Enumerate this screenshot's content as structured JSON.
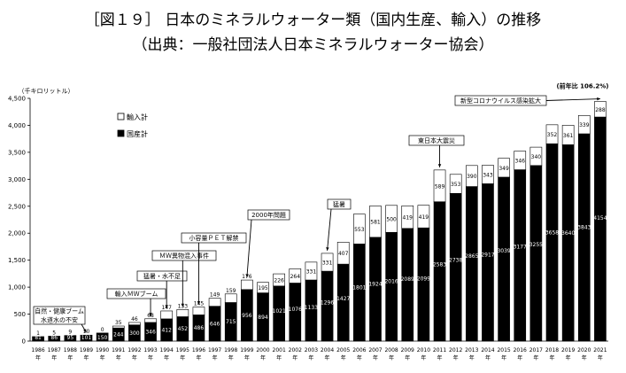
{
  "header": {
    "title": "［図１９］ 日本のミネラルウォーター類（国内生産、輸入）の推移",
    "subtitle": "（出典：一般社団法人日本ミネラルウォーター協会）"
  },
  "chart_data": {
    "type": "bar",
    "stacked": true,
    "yunit": "（千キロリットル）",
    "ylim": [
      0,
      4500
    ],
    "yticks": [
      "0",
      "500",
      "1,000",
      "1,500",
      "2,000",
      "2,500",
      "3,000",
      "3,500",
      "4,000",
      "4,500"
    ],
    "year_suffix": "年",
    "categories": [
      "1986",
      "1987",
      "1988",
      "1989",
      "1990",
      "1991",
      "1992",
      "1993",
      "1994",
      "1995",
      "1996",
      "1997",
      "1998",
      "1999",
      "2000",
      "2001",
      "2002",
      "2003",
      "2004",
      "2005",
      "2006",
      "2007",
      "2008",
      "2009",
      "2010",
      "2011",
      "2012",
      "2013",
      "2014",
      "2015",
      "2016",
      "2017",
      "2018",
      "2019",
      "2020",
      "2021"
    ],
    "series": [
      {
        "name": "国産計",
        "color": "#000000",
        "values": [
          81,
          86,
          95,
          101,
          150,
          244,
          300,
          346,
          412,
          452,
          486,
          646,
          715,
          956,
          894,
          1021,
          1076,
          1133,
          1296,
          1427,
          1801,
          1924,
          2016,
          2089,
          2099,
          2583,
          2738,
          2865,
          2917,
          3039,
          3177,
          3255,
          3658,
          3640,
          3843,
          4154
        ]
      },
      {
        "name": "輸入計",
        "color": "#ffffff",
        "values": [
          1,
          5,
          9,
          10,
          0,
          35,
          46,
          68,
          147,
          133,
          145,
          149,
          159,
          176,
          195,
          226,
          264,
          331,
          331,
          407,
          553,
          581,
          500,
          419,
          419,
          589,
          353,
          390,
          343,
          349,
          346,
          340,
          352,
          361,
          339,
          288
        ]
      }
    ],
    "legend_position": "top-left",
    "annotations": [
      {
        "text": "自然・健康ブーム\n水道水の不安",
        "year": "1989"
      },
      {
        "text": "輸入ＭＷブーム",
        "year": "1993"
      },
      {
        "text": "猛暑・水不足",
        "year": "1994"
      },
      {
        "text": "ＭＷ異物混入事件",
        "year": "1995"
      },
      {
        "text": "小容量ＰＥＴ解禁",
        "year": "1996"
      },
      {
        "text": "2000年問題",
        "year": "1999"
      },
      {
        "text": "猛暑",
        "year": "2004"
      },
      {
        "text": "東日本大震災",
        "year": "2011"
      },
      {
        "text": "新型コロナウイルス感染拡大",
        "year": "2021"
      },
      {
        "text": "(前年比 106.2%)",
        "year": "2021"
      }
    ]
  }
}
